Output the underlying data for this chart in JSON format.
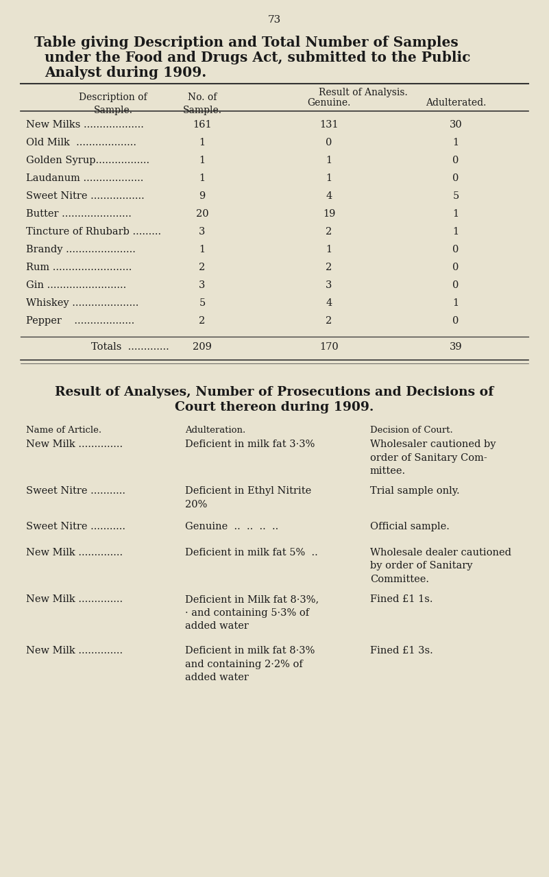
{
  "bg_color": "#e8e3d0",
  "text_color": "#1a1a1a",
  "page_number": "73",
  "title1": "Table giving Description and Total Number of Samples",
  "title2": "under the Food and Drugs Act, submitted to the Public",
  "title3": "Analyst during 1909.",
  "table1_rows": [
    [
      "New Milks ...................",
      "161",
      "131",
      "30"
    ],
    [
      "Old Milk  ...................",
      "1",
      "0",
      "1"
    ],
    [
      "Golden Syrup.................",
      "1",
      "1",
      "0"
    ],
    [
      "Laudanum ...................",
      "1",
      "1",
      "0"
    ],
    [
      "Sweet Nitre .................",
      "9",
      "4",
      "5"
    ],
    [
      "Butter ......................",
      "20",
      "19",
      "1"
    ],
    [
      "Tincture of Rhubarb .........",
      "3",
      "2",
      "1"
    ],
    [
      "Brandy ......................",
      "1",
      "1",
      "0"
    ],
    [
      "Rum .........................",
      "2",
      "2",
      "0"
    ],
    [
      "Gin .........................",
      "3",
      "3",
      "0"
    ],
    [
      "Whiskey .....................",
      "5",
      "4",
      "1"
    ],
    [
      "Pepper    ...................",
      "2",
      "2",
      "0"
    ]
  ],
  "table1_totals": [
    "Totals  .............",
    "209",
    "170",
    "39"
  ],
  "sec2_title1": "Result of Analyses, Number of Prosecutions and Decisions of",
  "sec2_title2": "Court thereon during 1909.",
  "table2_col_headers": [
    "Name of Article.",
    "Adulteration.",
    "Decision of Court."
  ],
  "table2_rows": [
    {
      "article": "New Milk ..............",
      "adulteration": "Deficient in milk fat 3·3%",
      "decision": "Wholesaler cautioned by\norder of Sanitary Com-\nmittee."
    },
    {
      "article": "Sweet Nitre ...........",
      "adulteration": "Deficient in Ethyl Nitrite\n20%",
      "decision": "Trial sample only."
    },
    {
      "article": "Sweet Nitre ...........",
      "adulteration": "Genuine  ..  ..  ..  ..",
      "decision": "Official sample."
    },
    {
      "article": "New Milk ..............",
      "adulteration": "Deficient in milk fat 5%  ..",
      "decision": "Wholesale dealer cautioned\nby order of Sanitary\nCommittee."
    },
    {
      "article": "New Milk ..............",
      "adulteration": "Deficient in Milk fat 8·3%,\n· and containing 5·3% of\nadded water",
      "decision": "Fined £1 1s."
    },
    {
      "article": "New Milk ..............",
      "adulteration": "Deficient in milk fat 8·3%\nand containing 2·2% of\nadded water",
      "decision": "Fined £1 3s."
    }
  ]
}
